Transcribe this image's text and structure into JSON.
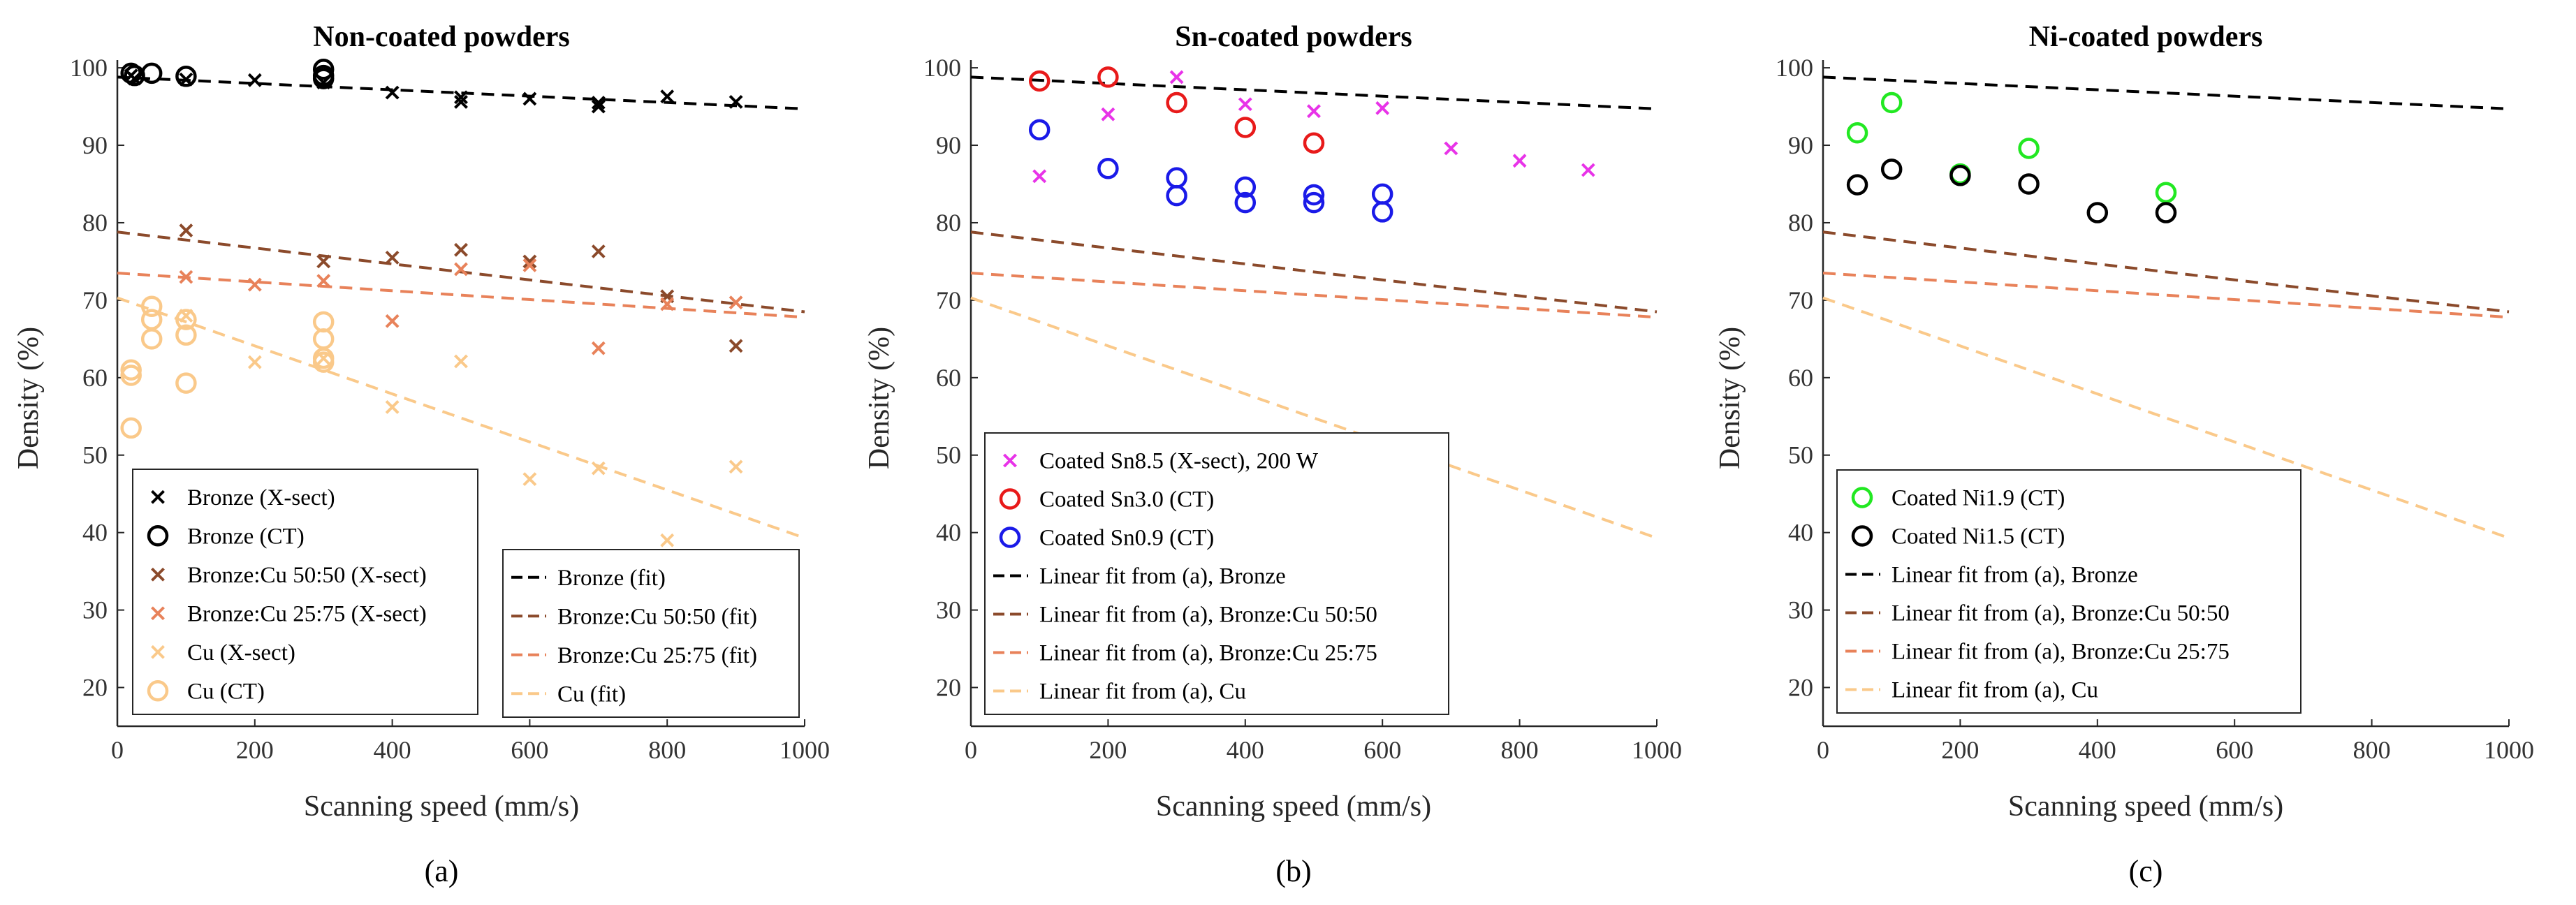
{
  "colors": {
    "bronze": "#000000",
    "bronze_cu_50": "#8B4A2B",
    "bronze_cu_25": "#E8825A",
    "cu": "#FAC98A",
    "sn85": "#E833E8",
    "sn30": "#E81A1A",
    "sn09": "#1A1AE8",
    "ni19": "#22E822",
    "ni15": "#000000",
    "axis": "#262626",
    "legend_border": "#262626"
  },
  "chart_data": [
    {
      "type": "scatter",
      "title": "Non-coated powders",
      "panel_label": "(a)",
      "xlabel": "Scanning speed (mm/s)",
      "ylabel": "Density (%)",
      "xlim": [
        0,
        1000
      ],
      "ylim": [
        15,
        101
      ],
      "xticks": [
        "0",
        "200",
        "400",
        "600",
        "800",
        "1000"
      ],
      "yticks": [
        "20",
        "30",
        "40",
        "50",
        "60",
        "70",
        "80",
        "90",
        "100"
      ],
      "series": [
        {
          "name": "Bronze (X-sect)",
          "marker": "x",
          "color_key": "bronze",
          "points": [
            [
              20,
              99
            ],
            [
              25,
              98.6
            ],
            [
              100,
              98.5
            ],
            [
              200,
              98.4
            ],
            [
              300,
              98.1
            ],
            [
              400,
              96.8
            ],
            [
              500,
              95.6
            ],
            [
              500,
              96.2
            ],
            [
              600,
              96
            ],
            [
              700,
              95
            ],
            [
              700,
              95.5
            ],
            [
              800,
              96.3
            ],
            [
              900,
              95.6
            ]
          ]
        },
        {
          "name": "Bronze (CT)",
          "marker": "o",
          "color_key": "bronze",
          "points": [
            [
              20,
              99.3
            ],
            [
              25,
              99
            ],
            [
              50,
              99.3
            ],
            [
              100,
              98.9
            ],
            [
              300,
              99.8
            ],
            [
              300,
              99
            ],
            [
              300,
              98.6
            ]
          ]
        },
        {
          "name": "Bronze:Cu 50:50 (X-sect)",
          "marker": "x",
          "color_key": "bronze_cu_50",
          "points": [
            [
              100,
              79
            ],
            [
              300,
              75
            ],
            [
              400,
              75.5
            ],
            [
              500,
              76.5
            ],
            [
              600,
              75
            ],
            [
              700,
              76.3
            ],
            [
              800,
              70.5
            ],
            [
              900,
              64.1
            ]
          ]
        },
        {
          "name": "Bronze:Cu 25:75 (X-sect)",
          "marker": "x",
          "color_key": "bronze_cu_25",
          "points": [
            [
              100,
              73
            ],
            [
              200,
              72
            ],
            [
              300,
              72.5
            ],
            [
              400,
              67.3
            ],
            [
              500,
              74
            ],
            [
              600,
              74.5
            ],
            [
              700,
              63.8
            ],
            [
              800,
              69.5
            ],
            [
              900,
              69.7
            ]
          ]
        },
        {
          "name": "Cu (X-sect)",
          "marker": "x",
          "color_key": "cu",
          "points": [
            [
              100,
              68
            ],
            [
              200,
              62
            ],
            [
              300,
              62.5
            ],
            [
              400,
              56.2
            ],
            [
              500,
              62.1
            ],
            [
              600,
              46.9
            ],
            [
              700,
              48.3
            ],
            [
              800,
              39
            ],
            [
              900,
              48.5
            ]
          ]
        },
        {
          "name": "Cu (CT)",
          "marker": "o",
          "color_key": "cu",
          "points": [
            [
              20,
              61
            ],
            [
              20,
              60.3
            ],
            [
              20,
              53.5
            ],
            [
              50,
              69.2
            ],
            [
              50,
              67.5
            ],
            [
              50,
              65
            ],
            [
              100,
              67.5
            ],
            [
              100,
              65.5
            ],
            [
              100,
              59.3
            ],
            [
              300,
              67.2
            ],
            [
              300,
              65
            ],
            [
              300,
              62.5
            ],
            [
              300,
              62
            ]
          ]
        }
      ],
      "fits": [
        {
          "name": "Bronze (fit)",
          "color_key": "bronze",
          "x": [
            0,
            1000
          ],
          "y": [
            98.8,
            94.7
          ]
        },
        {
          "name": "Bronze:Cu 50:50 (fit)",
          "color_key": "bronze_cu_50",
          "x": [
            0,
            1000
          ],
          "y": [
            78.8,
            68.5
          ]
        },
        {
          "name": "Bronze:Cu 25:75 (fit)",
          "color_key": "bronze_cu_25",
          "x": [
            0,
            1000
          ],
          "y": [
            73.5,
            67.8
          ]
        },
        {
          "name": "Cu (fit)",
          "color_key": "cu",
          "x": [
            0,
            1000
          ],
          "y": [
            70.3,
            39.3
          ]
        }
      ],
      "legend_markers": [
        "Bronze (X-sect)",
        "Bronze (CT)",
        "Bronze:Cu 50:50 (X-sect)",
        "Bronze:Cu 25:75 (X-sect)",
        "Cu (X-sect)",
        "Cu (CT)"
      ],
      "legend_lines": [
        "Bronze (fit)",
        "Bronze:Cu 50:50 (fit)",
        "Bronze:Cu 25:75 (fit)",
        "Cu (fit)"
      ]
    },
    {
      "type": "scatter",
      "title": "Sn-coated powders",
      "panel_label": "(b)",
      "xlabel": "Scanning speed (mm/s)",
      "ylabel": "Density (%)",
      "xlim": [
        0,
        1000
      ],
      "ylim": [
        15,
        101
      ],
      "xticks": [
        "0",
        "200",
        "400",
        "600",
        "800",
        "1000"
      ],
      "yticks": [
        "20",
        "30",
        "40",
        "50",
        "60",
        "70",
        "80",
        "90",
        "100"
      ],
      "series": [
        {
          "name": "Coated Sn8.5 (X-sect), 200 W",
          "marker": "x",
          "color_key": "sn85",
          "points": [
            [
              100,
              86
            ],
            [
              200,
              94
            ],
            [
              300,
              98.8
            ],
            [
              400,
              95.3
            ],
            [
              500,
              94.4
            ],
            [
              600,
              94.8
            ],
            [
              700,
              89.6
            ],
            [
              800,
              88
            ],
            [
              900,
              86.8
            ]
          ]
        },
        {
          "name": "Coated Sn3.0 (CT)",
          "marker": "o",
          "color_key": "sn30",
          "points": [
            [
              100,
              98.3
            ],
            [
              200,
              98.8
            ],
            [
              300,
              95.5
            ],
            [
              400,
              92.3
            ],
            [
              500,
              90.3
            ]
          ]
        },
        {
          "name": "Coated Sn0.9 (CT)",
          "marker": "o",
          "color_key": "sn09",
          "points": [
            [
              100,
              92
            ],
            [
              200,
              87
            ],
            [
              300,
              85.8
            ],
            [
              300,
              83.5
            ],
            [
              400,
              84.6
            ],
            [
              400,
              82.6
            ],
            [
              500,
              83.6
            ],
            [
              500,
              82.6
            ],
            [
              600,
              83.7
            ],
            [
              600,
              81.4
            ]
          ]
        }
      ],
      "fits": [
        {
          "name": "Linear fit from (a), Bronze",
          "color_key": "bronze",
          "x": [
            0,
            1000
          ],
          "y": [
            98.8,
            94.7
          ]
        },
        {
          "name": "Linear fit from (a), Bronze:Cu 50:50",
          "color_key": "bronze_cu_50",
          "x": [
            0,
            1000
          ],
          "y": [
            78.8,
            68.5
          ]
        },
        {
          "name": "Linear fit from (a), Bronze:Cu 25:75",
          "color_key": "bronze_cu_25",
          "x": [
            0,
            1000
          ],
          "y": [
            73.5,
            67.8
          ]
        },
        {
          "name": "Linear fit from (a), Cu",
          "color_key": "cu",
          "x": [
            0,
            1000
          ],
          "y": [
            70.3,
            39.3
          ]
        }
      ],
      "legend": [
        "Coated Sn8.5 (X-sect), 200 W",
        "Coated Sn3.0 (CT)",
        "Coated Sn0.9 (CT)",
        "Linear fit from (a), Bronze",
        "Linear fit from (a), Bronze:Cu 50:50",
        "Linear fit from (a), Bronze:Cu 25:75",
        "Linear fit from (a), Cu"
      ]
    },
    {
      "type": "scatter",
      "title": "Ni-coated powders",
      "panel_label": "(c)",
      "xlabel": "Scanning speed (mm/s)",
      "ylabel": "Density (%)",
      "xlim": [
        0,
        1000
      ],
      "ylim": [
        15,
        101
      ],
      "xticks": [
        "0",
        "200",
        "400",
        "600",
        "800",
        "1000"
      ],
      "yticks": [
        "20",
        "30",
        "40",
        "50",
        "60",
        "70",
        "80",
        "90",
        "100"
      ],
      "series": [
        {
          "name": "Coated Ni1.9 (CT)",
          "marker": "o",
          "color_key": "ni19",
          "points": [
            [
              50,
              91.6
            ],
            [
              100,
              95.5
            ],
            [
              200,
              86.3
            ],
            [
              300,
              89.6
            ],
            [
              500,
              83.9
            ]
          ]
        },
        {
          "name": "Coated Ni1.5 (CT)",
          "marker": "o",
          "color_key": "ni15",
          "points": [
            [
              50,
              84.9
            ],
            [
              100,
              86.9
            ],
            [
              200,
              86.1
            ],
            [
              300,
              85
            ],
            [
              400,
              81.3
            ],
            [
              500,
              81.3
            ]
          ]
        }
      ],
      "fits": [
        {
          "name": "Linear fit from (a), Bronze",
          "color_key": "bronze",
          "x": [
            0,
            1000
          ],
          "y": [
            98.8,
            94.7
          ]
        },
        {
          "name": "Linear fit from (a), Bronze:Cu 50:50",
          "color_key": "bronze_cu_50",
          "x": [
            0,
            1000
          ],
          "y": [
            78.8,
            68.5
          ]
        },
        {
          "name": "Linear fit from (a), Bronze:Cu 25:75",
          "color_key": "bronze_cu_25",
          "x": [
            0,
            1000
          ],
          "y": [
            73.5,
            67.8
          ]
        },
        {
          "name": "Linear fit from (a), Cu",
          "color_key": "cu",
          "x": [
            0,
            1000
          ],
          "y": [
            70.3,
            39.3
          ]
        }
      ],
      "legend": [
        "Coated Ni1.9 (CT)",
        "Coated Ni1.5 (CT)",
        "Linear fit from (a), Bronze",
        "Linear fit from (a), Bronze:Cu 50:50",
        "Linear fit from (a), Bronze:Cu 25:75",
        "Linear fit from (a), Cu"
      ]
    }
  ]
}
